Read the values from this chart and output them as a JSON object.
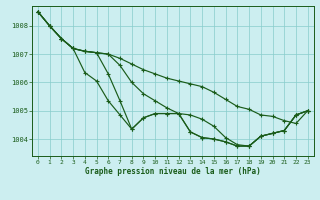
{
  "xlabel": "Graphe pression niveau de la mer (hPa)",
  "background_color": "#cceef0",
  "grid_color": "#88cccc",
  "line_color": "#1a5c1a",
  "xlim": [
    -0.5,
    23.5
  ],
  "ylim": [
    1003.4,
    1008.7
  ],
  "yticks": [
    1004,
    1005,
    1006,
    1007,
    1008
  ],
  "xticks": [
    0,
    1,
    2,
    3,
    4,
    5,
    6,
    7,
    8,
    9,
    10,
    11,
    12,
    13,
    14,
    15,
    16,
    17,
    18,
    19,
    20,
    21,
    22,
    23
  ],
  "lines": [
    [
      1008.5,
      1008.0,
      1007.55,
      1007.2,
      1007.1,
      1007.05,
      1007.0,
      1006.85,
      1006.65,
      1006.45,
      1006.3,
      1006.15,
      1006.05,
      1005.95,
      1005.85,
      1005.65,
      1005.4,
      1005.15,
      1005.05,
      1004.85,
      1004.8,
      1004.65,
      1004.55,
      1005.0
    ],
    [
      1008.5,
      1008.0,
      1007.55,
      1007.2,
      1007.1,
      1007.05,
      1007.0,
      1006.6,
      1006.0,
      1005.6,
      1005.35,
      1005.1,
      1004.9,
      1004.85,
      1004.7,
      1004.45,
      1004.05,
      1003.8,
      1003.75,
      1004.1,
      1004.2,
      1004.3,
      1004.85,
      1005.0
    ],
    [
      1008.5,
      1008.0,
      1007.55,
      1007.2,
      1007.1,
      1007.05,
      1006.3,
      1005.35,
      1004.35,
      1004.75,
      1004.9,
      1004.9,
      1004.9,
      1004.25,
      1004.05,
      1004.0,
      1003.9,
      1003.75,
      1003.75,
      1004.1,
      1004.2,
      1004.3,
      1004.85,
      1005.0
    ],
    [
      1008.5,
      1008.0,
      1007.55,
      1007.2,
      1006.35,
      1006.05,
      1005.35,
      1004.85,
      1004.35,
      1004.75,
      1004.9,
      1004.9,
      1004.9,
      1004.25,
      1004.05,
      1004.0,
      1003.9,
      1003.75,
      1003.75,
      1004.1,
      1004.2,
      1004.3,
      1004.85,
      1005.0
    ]
  ]
}
